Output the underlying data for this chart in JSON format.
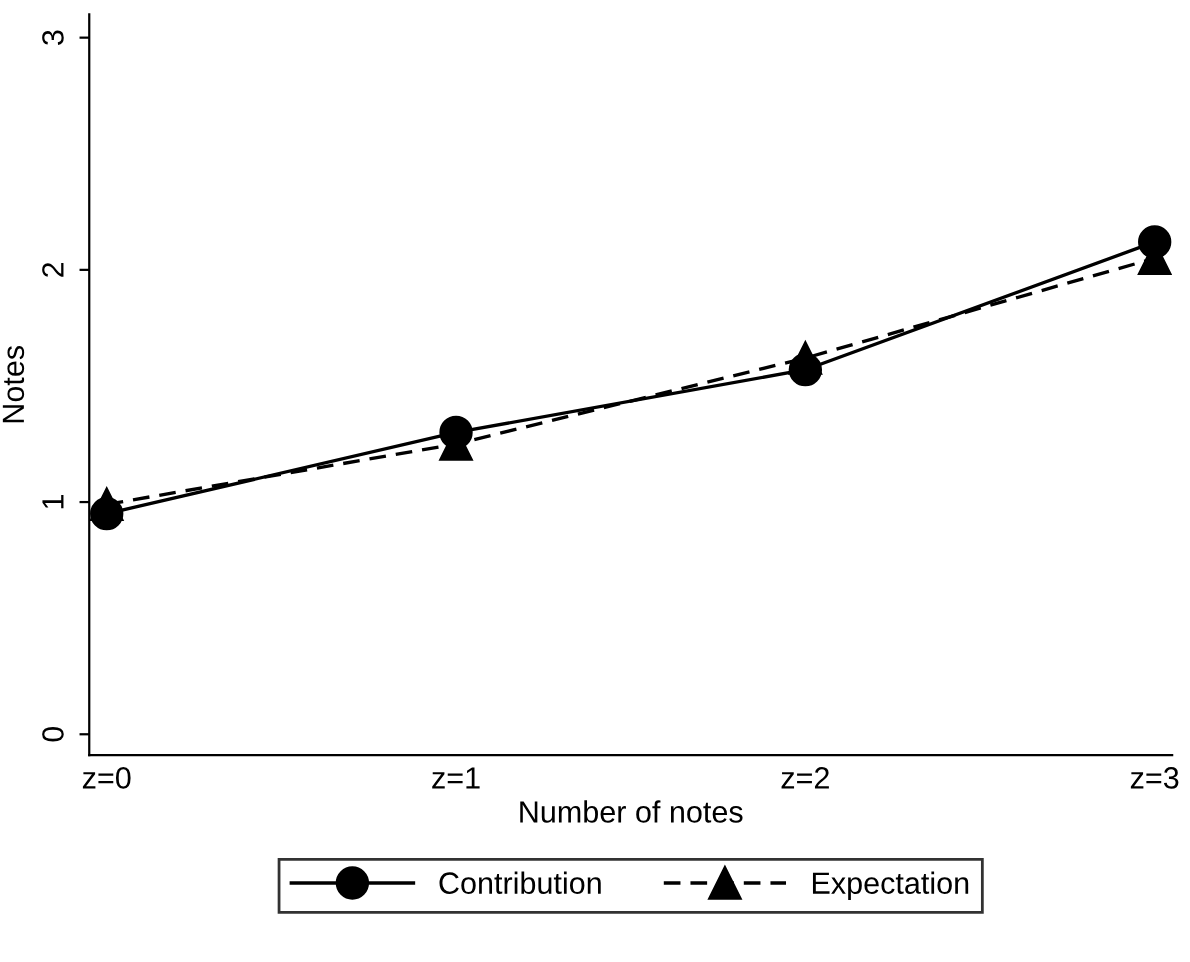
{
  "chart_data": {
    "type": "line",
    "xlabel": "Number of notes",
    "ylabel": "Notes",
    "categories": [
      "z=0",
      "z=1",
      "z=2",
      "z=3"
    ],
    "series": [
      {
        "name": "Contribution",
        "color": "#000000",
        "values": [
          0.95,
          1.3,
          1.57,
          2.12
        ],
        "marker": "circle",
        "line_style": "solid"
      },
      {
        "name": "Expectation",
        "color": "#000000",
        "values": [
          0.99,
          1.25,
          1.62,
          2.05
        ],
        "marker": "triangle",
        "line_style": "dashed"
      }
    ],
    "ylim": [
      -0.09,
      3.1
    ],
    "yticks": [
      0,
      1,
      2,
      3
    ],
    "grid": false,
    "legend": "bottom"
  }
}
